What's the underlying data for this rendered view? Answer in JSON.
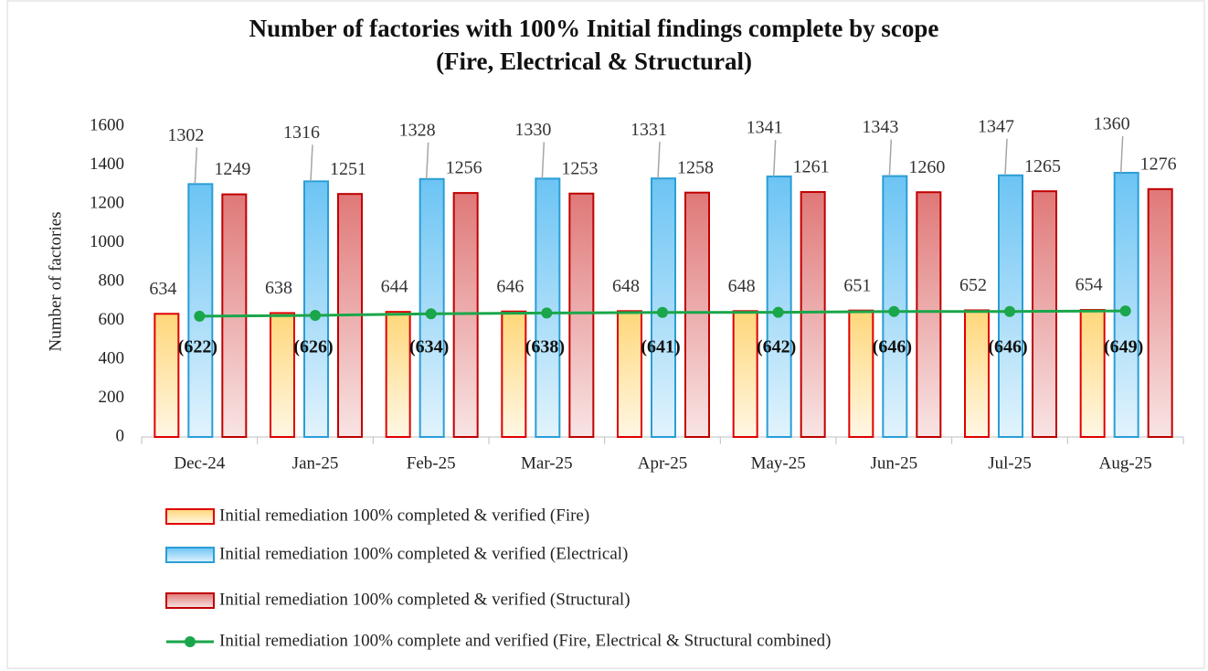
{
  "chart_data": {
    "type": "bar",
    "title": [
      "Number of factories with 100% Initial findings complete by scope",
      "(Fire, Electrical & Structural)"
    ],
    "y_label": "Number of factories",
    "categories": [
      "Dec-24",
      "Jan-25",
      "Feb-25",
      "Mar-25",
      "Apr-25",
      "May-25",
      "Jun-25",
      "Jul-25",
      "Aug-25"
    ],
    "ylim": [
      0,
      1600
    ],
    "yticks": [
      0,
      200,
      400,
      600,
      800,
      1000,
      1200,
      1400,
      1600
    ],
    "grid": false,
    "legend": "bottom",
    "series": [
      {
        "name": "Initial remediation 100% completed & verified (Fire)",
        "type": "bar",
        "color": "#ffd77a",
        "edge": "#e00000",
        "values": [
          634,
          638,
          644,
          646,
          648,
          648,
          651,
          652,
          654
        ]
      },
      {
        "name": "Initial remediation 100% completed & verified (Electrical)",
        "type": "bar",
        "color": "#6cc4f4",
        "edge": "#2a9ed6",
        "values": [
          1302,
          1316,
          1328,
          1330,
          1331,
          1341,
          1343,
          1347,
          1360
        ]
      },
      {
        "name": "Initial remediation 100% completed & verified (Structural)",
        "type": "bar",
        "color": "#e07878",
        "edge": "#c00000",
        "values": [
          1249,
          1251,
          1256,
          1253,
          1258,
          1261,
          1260,
          1265,
          1276
        ]
      },
      {
        "name": "Initial remediation 100% complete and verified (Fire, Electrical & Structural combined)",
        "type": "line",
        "color": "#1aa64a",
        "values": [
          622,
          626,
          634,
          638,
          641,
          642,
          646,
          646,
          649
        ],
        "value_labels": [
          "(622)",
          "(626)",
          "(634)",
          "(638)",
          "(641)",
          "(642)",
          "(646)",
          "(646)",
          "(649)"
        ]
      }
    ]
  }
}
